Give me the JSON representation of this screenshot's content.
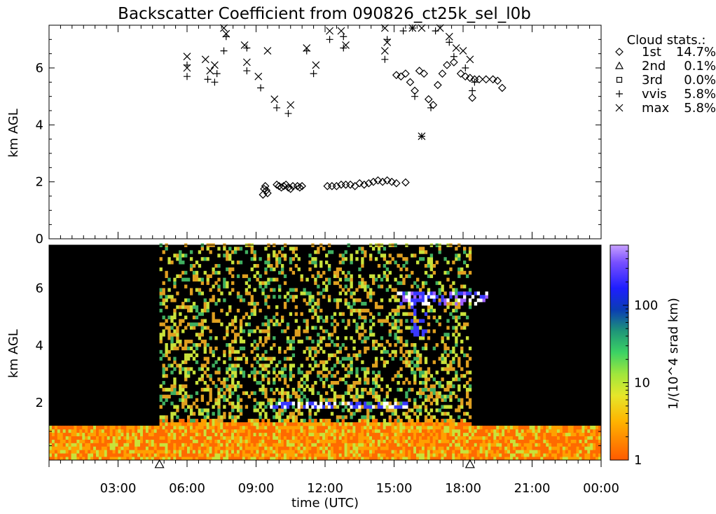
{
  "chart_data": [
    {
      "type": "scatter",
      "title": "Backscatter Coefficient from 090826_ct25k_sel_l0b",
      "ylabel": "km AGL",
      "xlim": [
        0,
        24
      ],
      "ylim": [
        0,
        7.5
      ],
      "y_ticks": [
        "0",
        "2",
        "4",
        "6"
      ],
      "legend": {
        "title": "Cloud stats.:",
        "position": "top-right",
        "entries": [
          {
            "symbol": "diamond-icon",
            "label": "1st",
            "value": "14.7%"
          },
          {
            "symbol": "triangle-icon",
            "label": "2nd",
            "value": "0.1%"
          },
          {
            "symbol": "square-icon",
            "label": "3rd",
            "value": "0.0%"
          },
          {
            "symbol": "plus-icon",
            "label": "vvis",
            "value": "5.8%"
          },
          {
            "symbol": "cross-icon",
            "label": "max",
            "value": "5.8%"
          }
        ]
      },
      "series": [
        {
          "name": "1st",
          "marker": "diamond",
          "points": [
            [
              9.3,
              1.55
            ],
            [
              9.35,
              1.75
            ],
            [
              9.4,
              1.85
            ],
            [
              9.45,
              1.7
            ],
            [
              9.5,
              1.6
            ],
            [
              9.9,
              1.9
            ],
            [
              10.0,
              1.85
            ],
            [
              10.1,
              1.8
            ],
            [
              10.2,
              1.85
            ],
            [
              10.3,
              1.9
            ],
            [
              10.4,
              1.8
            ],
            [
              10.5,
              1.75
            ],
            [
              10.6,
              1.85
            ],
            [
              10.8,
              1.85
            ],
            [
              10.9,
              1.8
            ],
            [
              11.0,
              1.85
            ],
            [
              12.1,
              1.85
            ],
            [
              12.3,
              1.85
            ],
            [
              12.5,
              1.85
            ],
            [
              12.7,
              1.9
            ],
            [
              12.9,
              1.9
            ],
            [
              13.1,
              1.9
            ],
            [
              13.3,
              1.85
            ],
            [
              13.5,
              1.95
            ],
            [
              13.7,
              1.9
            ],
            [
              13.9,
              1.95
            ],
            [
              14.1,
              2.0
            ],
            [
              14.3,
              2.05
            ],
            [
              14.5,
              2.0
            ],
            [
              14.7,
              2.05
            ],
            [
              14.9,
              2.0
            ],
            [
              15.1,
              1.95
            ],
            [
              15.5,
              1.98
            ],
            [
              15.1,
              5.75
            ],
            [
              15.3,
              5.7
            ],
            [
              15.5,
              5.8
            ],
            [
              15.7,
              5.5
            ],
            [
              15.9,
              5.2
            ],
            [
              16.1,
              5.9
            ],
            [
              16.3,
              5.8
            ],
            [
              16.5,
              4.9
            ],
            [
              16.7,
              4.7
            ],
            [
              16.9,
              5.4
            ],
            [
              17.1,
              5.8
            ],
            [
              17.3,
              6.1
            ],
            [
              17.6,
              6.2
            ],
            [
              17.9,
              5.8
            ],
            [
              18.1,
              5.7
            ],
            [
              18.3,
              5.65
            ],
            [
              18.5,
              5.6
            ],
            [
              18.7,
              5.6
            ],
            [
              19.0,
              5.6
            ],
            [
              19.3,
              5.6
            ],
            [
              19.5,
              5.55
            ],
            [
              19.7,
              5.3
            ],
            [
              18.4,
              4.95
            ]
          ]
        },
        {
          "name": "vvis",
          "marker": "plus",
          "points": [
            [
              6.0,
              5.7
            ],
            [
              6.0,
              6.1
            ],
            [
              6.9,
              5.6
            ],
            [
              7.2,
              5.5
            ],
            [
              7.3,
              5.8
            ],
            [
              7.6,
              6.6
            ],
            [
              7.7,
              7.1
            ],
            [
              8.6,
              6.7
            ],
            [
              8.6,
              5.9
            ],
            [
              9.2,
              5.3
            ],
            [
              9.9,
              4.6
            ],
            [
              10.4,
              4.4
            ],
            [
              11.2,
              6.6
            ],
            [
              11.5,
              5.8
            ],
            [
              12.2,
              7.0
            ],
            [
              12.8,
              7.1
            ],
            [
              12.8,
              6.7
            ],
            [
              14.6,
              6.3
            ],
            [
              14.7,
              7.0
            ],
            [
              15.4,
              7.3
            ],
            [
              15.8,
              7.4
            ],
            [
              16.2,
              3.6
            ],
            [
              16.8,
              7.3
            ],
            [
              17.4,
              6.9
            ],
            [
              17.6,
              6.4
            ],
            [
              18.1,
              6.0
            ],
            [
              18.4,
              5.2
            ],
            [
              18.5,
              5.5
            ],
            [
              15.9,
              5.0
            ],
            [
              16.6,
              4.6
            ]
          ]
        },
        {
          "name": "max",
          "marker": "cross",
          "points": [
            [
              6.0,
              6.4
            ],
            [
              6.0,
              6.0
            ],
            [
              6.8,
              6.3
            ],
            [
              7.0,
              5.9
            ],
            [
              7.2,
              6.1
            ],
            [
              7.6,
              7.4
            ],
            [
              7.7,
              7.2
            ],
            [
              8.5,
              6.8
            ],
            [
              8.6,
              6.2
            ],
            [
              9.1,
              5.7
            ],
            [
              9.5,
              6.6
            ],
            [
              9.8,
              4.9
            ],
            [
              10.5,
              4.7
            ],
            [
              11.2,
              6.7
            ],
            [
              11.6,
              6.1
            ],
            [
              12.2,
              7.3
            ],
            [
              12.7,
              7.3
            ],
            [
              12.9,
              6.8
            ],
            [
              14.6,
              7.4
            ],
            [
              14.7,
              6.9
            ],
            [
              14.6,
              6.6
            ],
            [
              15.8,
              7.4
            ],
            [
              16.2,
              7.4
            ],
            [
              17.0,
              7.4
            ],
            [
              17.4,
              7.1
            ],
            [
              17.7,
              6.7
            ],
            [
              18.0,
              6.6
            ],
            [
              18.3,
              6.3
            ],
            [
              16.2,
              3.6
            ]
          ]
        }
      ]
    },
    {
      "type": "heatmap",
      "xlabel": "time (UTC)",
      "ylabel": "km AGL",
      "x_ticks": [
        "03:00",
        "06:00",
        "09:00",
        "12:00",
        "15:00",
        "18:00",
        "21:00",
        "00:00"
      ],
      "x_tick_values": [
        3,
        6,
        9,
        12,
        15,
        18,
        21,
        24
      ],
      "y_ticks": [
        "2",
        "4",
        "6"
      ],
      "xlim": [
        0,
        24
      ],
      "ylim": [
        0,
        7.5
      ],
      "colorbar": {
        "label": "1/(10^4 srad km)",
        "scale": "log",
        "ticks": [
          "1",
          "10",
          "100"
        ],
        "range": [
          1,
          600
        ]
      },
      "markers": {
        "symbol": "triangle-icon",
        "x": [
          4.8,
          18.3
        ]
      },
      "features": {
        "daylight_noise_window": [
          4.8,
          18.3
        ],
        "boundary_layer_top_km": 1.2,
        "low_cloud": {
          "x": [
            9.3,
            15.5
          ],
          "base_km": 1.9
        },
        "high_cloud": {
          "x": [
            15.0,
            19.0
          ],
          "base_km": 5.6
        }
      },
      "colors": {
        "background": "#000000",
        "low": "#ff6a00",
        "mid": "#c9e23a",
        "high": "#3a3aff",
        "top": "#a060ff"
      }
    }
  ]
}
